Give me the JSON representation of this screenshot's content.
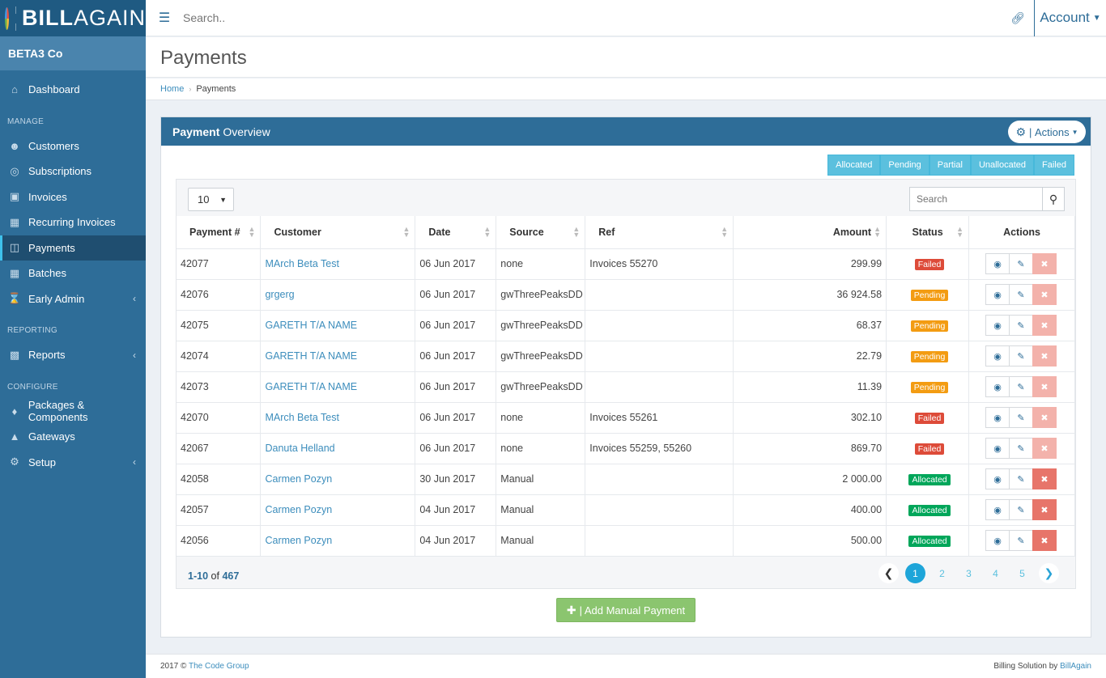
{
  "brand": {
    "bold": "BILL",
    "light": "AGAIN"
  },
  "company": "BETA3 Co",
  "sidebar": {
    "dashboard": "Dashboard",
    "manage_header": "MANAGE",
    "customers": "Customers",
    "subscriptions": "Subscriptions",
    "invoices": "Invoices",
    "recurring": "Recurring Invoices",
    "payments": "Payments",
    "batches": "Batches",
    "early_admin": "Early Admin",
    "reporting_header": "REPORTING",
    "reports": "Reports",
    "configure_header": "CONFIGURE",
    "packages": "Packages & Components",
    "gateways": "Gateways",
    "setup": "Setup"
  },
  "topbar": {
    "search_placeholder": "Search..",
    "account": "Account"
  },
  "page": {
    "title": "Payments"
  },
  "breadcrumb": {
    "home": "Home",
    "current": "Payments"
  },
  "panel": {
    "title_bold": "Payment",
    "title_rest": "Overview",
    "actions": "Actions"
  },
  "filters": [
    "Allocated",
    "Pending",
    "Partial",
    "Unallocated",
    "Failed"
  ],
  "grid": {
    "per_page": "10",
    "search_placeholder": "Search",
    "columns": [
      "Payment #",
      "Customer",
      "Date",
      "Source",
      "Ref",
      "Amount",
      "Status",
      "Actions"
    ],
    "rows": [
      {
        "id": "42077",
        "customer": "MArch Beta Test",
        "date": "06 Jun 2017",
        "source": "none",
        "ref": "Invoices 55270",
        "amount": "299.99",
        "status": "Failed"
      },
      {
        "id": "42076",
        "customer": "grgerg",
        "date": "06 Jun 2017",
        "source": "gwThreePeaksDD",
        "ref": "",
        "amount": "36 924.58",
        "status": "Pending"
      },
      {
        "id": "42075",
        "customer": "GARETH T/A NAME",
        "date": "06 Jun 2017",
        "source": "gwThreePeaksDD",
        "ref": "",
        "amount": "68.37",
        "status": "Pending"
      },
      {
        "id": "42074",
        "customer": "GARETH T/A NAME",
        "date": "06 Jun 2017",
        "source": "gwThreePeaksDD",
        "ref": "",
        "amount": "22.79",
        "status": "Pending"
      },
      {
        "id": "42073",
        "customer": "GARETH T/A NAME",
        "date": "06 Jun 2017",
        "source": "gwThreePeaksDD",
        "ref": "",
        "amount": "11.39",
        "status": "Pending"
      },
      {
        "id": "42070",
        "customer": "MArch Beta Test",
        "date": "06 Jun 2017",
        "source": "none",
        "ref": "Invoices 55261",
        "amount": "302.10",
        "status": "Failed"
      },
      {
        "id": "42067",
        "customer": "Danuta Helland",
        "date": "06 Jun 2017",
        "source": "none",
        "ref": "Invoices 55259, 55260",
        "amount": "869.70",
        "status": "Failed"
      },
      {
        "id": "42058",
        "customer": "Carmen Pozyn",
        "date": "30 Jun 2017",
        "source": "Manual",
        "ref": "",
        "amount": "2 000.00",
        "status": "Allocated"
      },
      {
        "id": "42057",
        "customer": "Carmen Pozyn",
        "date": "04 Jun 2017",
        "source": "Manual",
        "ref": "",
        "amount": "400.00",
        "status": "Allocated"
      },
      {
        "id": "42056",
        "customer": "Carmen Pozyn",
        "date": "04 Jun 2017",
        "source": "Manual",
        "ref": "",
        "amount": "500.00",
        "status": "Allocated"
      }
    ],
    "range": "1-10",
    "of_label": "of",
    "total": "467",
    "pages": [
      "1",
      "2",
      "3",
      "4",
      "5"
    ]
  },
  "add_button": "| Add Manual Payment",
  "footer": {
    "copyright": "2017 ©",
    "company": "The Code Group",
    "right_text": "Billing Solution by",
    "right_link": "BillAgain"
  },
  "colors": {
    "sidebar": "#2e6d98",
    "accent": "#3ec1ec",
    "failed": "#dd4b39",
    "pending": "#f39c12",
    "allocated": "#00a65a"
  }
}
